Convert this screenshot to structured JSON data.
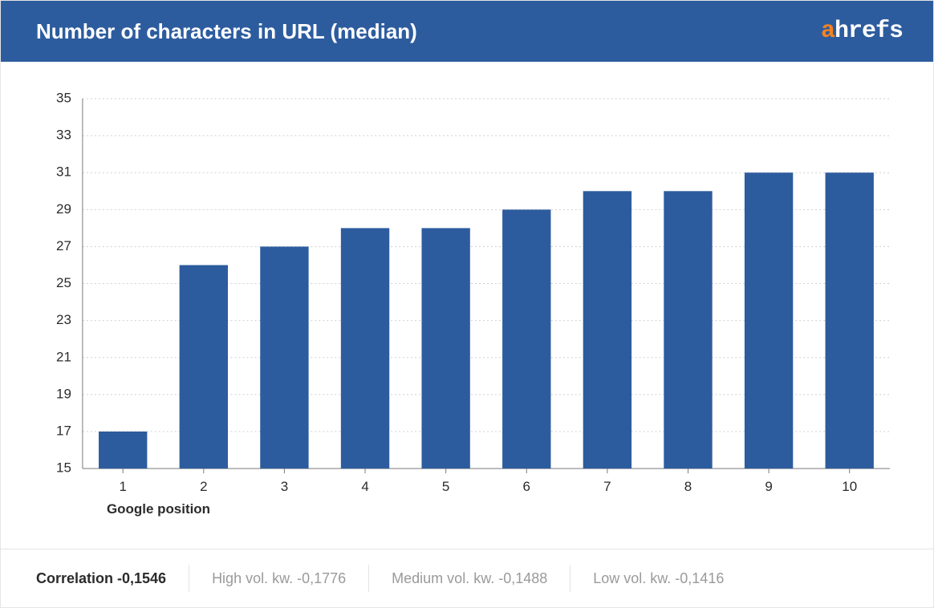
{
  "header": {
    "title": "Number of characters in URL (median)",
    "background_color": "#2d5c9e",
    "title_color": "#ffffff",
    "title_fontsize": 26,
    "logo": {
      "a_text": "a",
      "a_color": "#f5821f",
      "rest_text": "hrefs",
      "rest_color": "#ffffff"
    }
  },
  "chart": {
    "type": "bar",
    "categories": [
      "1",
      "2",
      "3",
      "4",
      "5",
      "6",
      "7",
      "8",
      "9",
      "10"
    ],
    "values": [
      17,
      26,
      27,
      28,
      28,
      29,
      30,
      30,
      31,
      31
    ],
    "bar_color": "#2d5c9e",
    "background_color": "#ffffff",
    "grid_color": "#cfcfcf",
    "axis_color": "#7a7a7a",
    "tick_label_color": "#2b2b2b",
    "ylim": [
      15,
      35
    ],
    "ytick_step": 2,
    "yticks": [
      15,
      17,
      19,
      21,
      23,
      25,
      27,
      29,
      31,
      33,
      35
    ],
    "x_axis_title": "Google position",
    "bar_width_ratio": 0.6,
    "label_fontsize": 17
  },
  "footer": {
    "border_top_color": "#e5e5e5",
    "primary": "Correlation -0,1546",
    "items": [
      "High vol. kw. -0,1776",
      "Medium vol. kw. -0,1488",
      "Low vol. kw. -0,1416"
    ],
    "primary_color": "#2b2b2b",
    "muted_color": "#9a9a9a",
    "separator_color": "#e5e5e5"
  },
  "card": {
    "border_color": "#e5e5e5"
  }
}
